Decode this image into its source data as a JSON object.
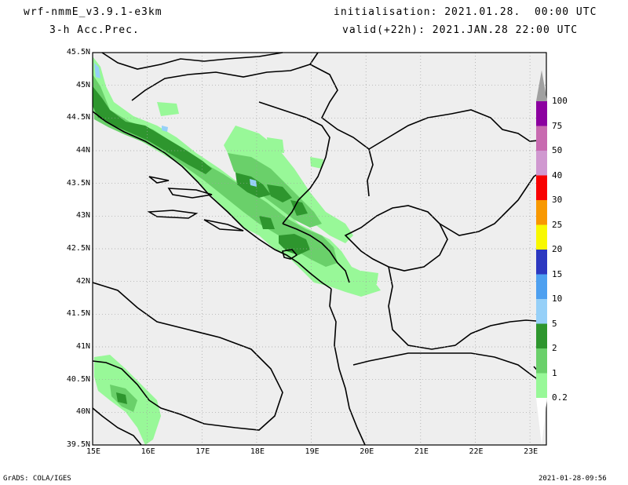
{
  "header": {
    "model": "wrf-nmmE_v3.9.1-e3km",
    "product": "3-h Acc.Prec.",
    "init": "initialisation: 2021.01.28.  00:00 UTC",
    "valid": "valid(+22h): 2021.JAN.28 22:00 UTC"
  },
  "axes": {
    "lat_labels": [
      "45.5N",
      "45N",
      "44.5N",
      "44N",
      "43.5N",
      "43N",
      "42.5N",
      "42N",
      "41.5N",
      "41N",
      "40.5N",
      "40N",
      "39.5N"
    ],
    "lon_labels": [
      "15E",
      "16E",
      "17E",
      "18E",
      "19E",
      "20E",
      "21E",
      "22E",
      "23E"
    ],
    "lat_range": [
      39.5,
      45.5
    ],
    "lon_range": [
      15,
      23.3
    ],
    "grid": "dotted"
  },
  "colorbar": {
    "labels": [
      "0.2",
      "1",
      "2",
      "5",
      "10",
      "15",
      "20",
      "25",
      "30",
      "40",
      "50",
      "75",
      "100"
    ],
    "colors": [
      "#98f898",
      "#6ad06a",
      "#2e962e",
      "#96d0f8",
      "#4ea0f0",
      "#2c38c0",
      "#f8f800",
      "#f89800",
      "#f80000",
      "#d098d0",
      "#c86ab0",
      "#8c00a0",
      "#a0a0a0"
    ]
  },
  "map_colors": {
    "background": "#eeeeee",
    "light": "#98f898",
    "medium": "#6ad06a",
    "dark": "#2e962e",
    "blue": "#96d0f8"
  },
  "footer": {
    "left": "GrADS: COLA/IGES",
    "right": "2021-01-28-09:56"
  }
}
